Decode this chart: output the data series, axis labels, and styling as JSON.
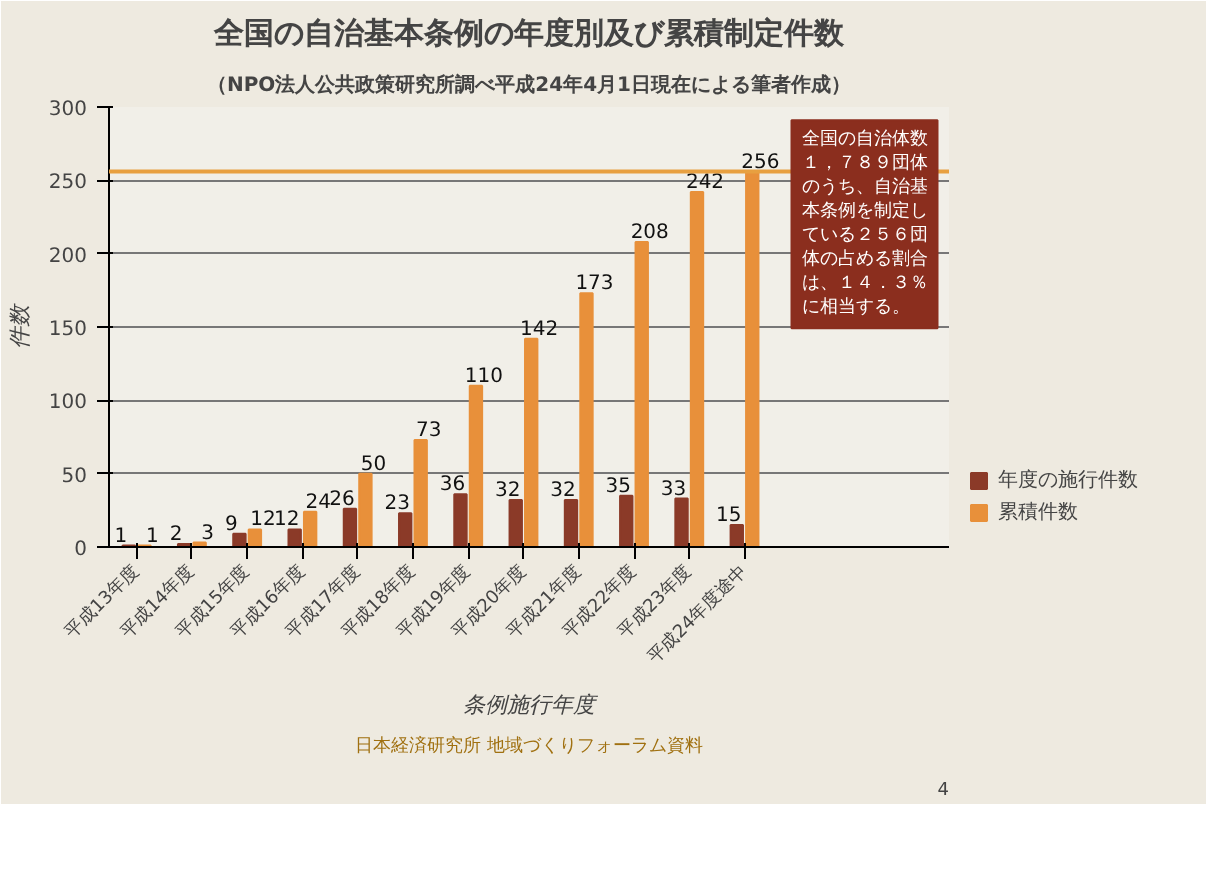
{
  "chart_data": {
    "type": "bar",
    "title": "全国の自治基本条例の年度別及び累積制定件数",
    "subtitle": "（NPO法人公共政策研究所調べ平成24年4月1日現在による筆者作成）",
    "xlabel": "条例施行年度",
    "ylabel": "件数",
    "categories": [
      "平成13年度",
      "平成14年度",
      "平成15年度",
      "平成16年度",
      "平成17年度",
      "平成18年度",
      "平成19年度",
      "平成20年度",
      "平成21年度",
      "平成22年度",
      "平成23年度",
      "平成24年度途中"
    ],
    "series": [
      {
        "name": "年度の施行件数",
        "color": "#8b3a28",
        "values": [
          1,
          2,
          9,
          12,
          26,
          23,
          36,
          32,
          32,
          35,
          33,
          15
        ]
      },
      {
        "name": "累積件数",
        "color": "#e8903a",
        "values": [
          1,
          3,
          12,
          24,
          50,
          73,
          110,
          142,
          173,
          208,
          242,
          256
        ]
      }
    ],
    "ylim": [
      0,
      300
    ],
    "yticks": [
      0,
      50,
      100,
      150,
      200,
      250,
      300
    ],
    "grid": "y",
    "legend": "right",
    "data_labels": true,
    "ref_lines": [
      {
        "axis": "y",
        "value": 256,
        "color": "#e8a040"
      }
    ],
    "annotations": [
      "全国の自治体数１，７８９団体のうち、自治基本条例を制定している２５６団体の占める割合は、１４．３％に相当する。",
      "日本経済研究所 地域づくりフォーラム資料",
      "4"
    ]
  }
}
